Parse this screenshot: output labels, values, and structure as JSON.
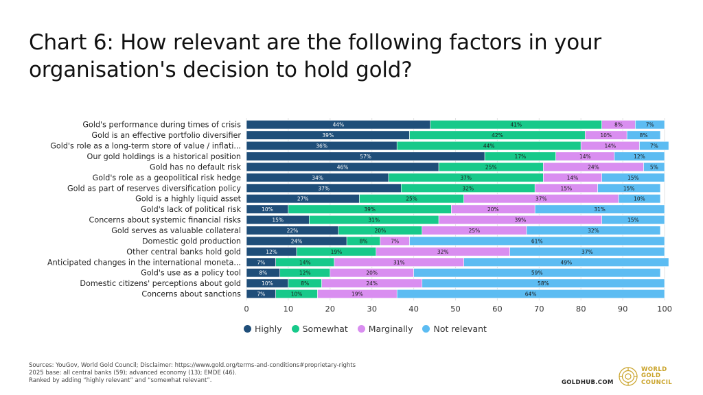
{
  "title": "Chart 6: How relevant are the following factors in your organisation's decision to hold gold?",
  "chart_data": {
    "type": "bar",
    "orientation": "horizontal",
    "stacked": true,
    "categories": [
      "Gold's performance during times of crisis",
      "Gold is an effective portfolio diversifier",
      "Gold's role as a long-term store of value / inflati...",
      "Our gold holdings is a historical position",
      "Gold has no default risk",
      "Gold's role as a geopolitical risk hedge",
      "Gold as part of reserves diversification policy",
      "Gold is a highly liquid asset",
      "Gold's lack of political risk",
      "Concerns about systemic financial risks",
      "Gold serves as valuable collateral",
      "Domestic gold production",
      "Other central banks hold gold",
      "Anticipated changes in the international moneta...",
      "Gold's use as a policy tool",
      "Domestic citizens' perceptions about gold",
      "Concerns about sanctions"
    ],
    "series": [
      {
        "name": "Highly",
        "color": "#1f4e79",
        "values": [
          44,
          39,
          36,
          57,
          46,
          34,
          37,
          27,
          10,
          15,
          22,
          24,
          12,
          7,
          8,
          10,
          7
        ]
      },
      {
        "name": "Somewhat",
        "color": "#17c98a",
        "values": [
          41,
          42,
          44,
          17,
          25,
          37,
          32,
          25,
          39,
          31,
          20,
          8,
          19,
          14,
          12,
          8,
          10
        ]
      },
      {
        "name": "Marginally",
        "color": "#d98ef0",
        "values": [
          8,
          10,
          14,
          14,
          24,
          14,
          15,
          37,
          20,
          39,
          25,
          7,
          32,
          31,
          20,
          24,
          19
        ]
      },
      {
        "name": "Not relevant",
        "color": "#5cbcf2",
        "values": [
          7,
          8,
          7,
          12,
          5,
          15,
          15,
          10,
          31,
          15,
          32,
          61,
          37,
          49,
          59,
          58,
          64
        ]
      }
    ],
    "xlim": [
      0,
      100
    ],
    "xticks": [
      0,
      10,
      20,
      30,
      40,
      50,
      60,
      70,
      80,
      90,
      100
    ],
    "grid": "vertical",
    "legend": "bottom"
  },
  "footnotes": [
    "Sources: YouGov, World Gold Council; Disclaimer: https://www.gold.org/terms-and-conditions#proprietary-rights",
    "2025 base: all central banks (59); advanced economy (13); EMDE (46).",
    "Ranked by adding “highly relevant” and “somewhat relevant”."
  ],
  "brand": {
    "site": "GOLDHUB.COM",
    "logo_lines": [
      "WORLD",
      "GOLD",
      "COUNCIL"
    ],
    "logo_color": "#c9a227"
  }
}
